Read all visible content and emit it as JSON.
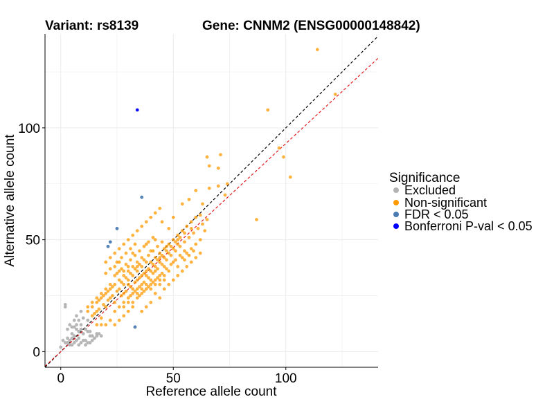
{
  "chart_data": {
    "type": "scatter",
    "title_left": "Variant: rs8139",
    "title_right": "Gene: CNNM2 (ENSG00000148842)",
    "xlabel": "Reference allele count",
    "ylabel": "Alternative allele count",
    "xlim": [
      -7,
      141
    ],
    "ylim": [
      -7,
      142
    ],
    "xticks": [
      0,
      50,
      100
    ],
    "yticks": [
      0,
      50,
      100
    ],
    "grid": true,
    "reference_lines": [
      {
        "name": "identity",
        "style": "dashed",
        "color": "#000000",
        "slope": 1.0,
        "intercept": 0
      },
      {
        "name": "fit",
        "style": "dashed",
        "color": "#e41a1c",
        "slope": 0.93,
        "intercept": 0
      }
    ],
    "legend": {
      "title": "Significance",
      "position": "right",
      "entries": [
        {
          "label": "Excluded",
          "color": "#b3b3b3"
        },
        {
          "label": "Non-significant",
          "color": "#ff9900"
        },
        {
          "label": "FDR < 0.05",
          "color": "#4a7ab0"
        },
        {
          "label": "Bonferroni P-val < 0.05",
          "color": "#0000ff"
        }
      ]
    },
    "series": [
      {
        "name": "Excluded",
        "color": "#b3b3b3",
        "points": [
          [
            0,
            2
          ],
          [
            2,
            4
          ],
          [
            3,
            6
          ],
          [
            1,
            5
          ],
          [
            4,
            3
          ],
          [
            5,
            8
          ],
          [
            6,
            4
          ],
          [
            7,
            10
          ],
          [
            8,
            6
          ],
          [
            9,
            12
          ],
          [
            10,
            8
          ],
          [
            3,
            10
          ],
          [
            2,
            20
          ],
          [
            2,
            21
          ],
          [
            6,
            14
          ],
          [
            8,
            14
          ],
          [
            10,
            15
          ],
          [
            11,
            10
          ],
          [
            12,
            9
          ],
          [
            13,
            7
          ],
          [
            14,
            7
          ],
          [
            15,
            6
          ],
          [
            16,
            8
          ],
          [
            17,
            8
          ],
          [
            18,
            7
          ],
          [
            5,
            3
          ],
          [
            7,
            5
          ],
          [
            9,
            4
          ],
          [
            11,
            5
          ],
          [
            12,
            4
          ],
          [
            13,
            4
          ],
          [
            8,
            9
          ],
          [
            9,
            10
          ],
          [
            6,
            7
          ],
          [
            4,
            5
          ],
          [
            3,
            4
          ],
          [
            5,
            11
          ],
          [
            7,
            12
          ],
          [
            4,
            12
          ],
          [
            14,
            5
          ],
          [
            16,
            7
          ],
          [
            11,
            3
          ],
          [
            6,
            11
          ],
          [
            9,
            18
          ],
          [
            7,
            16
          ],
          [
            12,
            14
          ],
          [
            10,
            5
          ],
          [
            5,
            6
          ],
          [
            13,
            9
          ],
          [
            8,
            3
          ]
        ]
      },
      {
        "name": "Non-significant",
        "color": "#ff9900",
        "points": [
          [
            114,
            135
          ],
          [
            92,
            108
          ],
          [
            122,
            115
          ],
          [
            99,
            87
          ],
          [
            102,
            78
          ],
          [
            87,
            59
          ],
          [
            97,
            91
          ],
          [
            71,
            88
          ],
          [
            65,
            87
          ],
          [
            70,
            82
          ],
          [
            66,
            83
          ],
          [
            74,
            75
          ],
          [
            73,
            70
          ],
          [
            70,
            74
          ],
          [
            66,
            73
          ],
          [
            60,
            72
          ],
          [
            63,
            66
          ],
          [
            57,
            68
          ],
          [
            54,
            66
          ],
          [
            62,
            61
          ],
          [
            58,
            55
          ],
          [
            50,
            60
          ],
          [
            52,
            50
          ],
          [
            55,
            45
          ],
          [
            48,
            55
          ],
          [
            45,
            58
          ],
          [
            47,
            47
          ],
          [
            44,
            42
          ],
          [
            42,
            50
          ],
          [
            40,
            45
          ],
          [
            38,
            48
          ],
          [
            36,
            42
          ],
          [
            34,
            40
          ],
          [
            32,
            44
          ],
          [
            30,
            38
          ],
          [
            28,
            36
          ],
          [
            26,
            40
          ],
          [
            24,
            34
          ],
          [
            22,
            30
          ],
          [
            20,
            28
          ],
          [
            18,
            26
          ],
          [
            16,
            24
          ],
          [
            14,
            22
          ],
          [
            12,
            20
          ],
          [
            14,
            16
          ],
          [
            16,
            18
          ],
          [
            18,
            15
          ],
          [
            20,
            20
          ],
          [
            22,
            24
          ],
          [
            24,
            22
          ],
          [
            26,
            28
          ],
          [
            28,
            26
          ],
          [
            30,
            30
          ],
          [
            32,
            28
          ],
          [
            34,
            32
          ],
          [
            36,
            30
          ],
          [
            38,
            34
          ],
          [
            40,
            32
          ],
          [
            42,
            36
          ],
          [
            44,
            34
          ],
          [
            46,
            38
          ],
          [
            48,
            36
          ],
          [
            50,
            40
          ],
          [
            52,
            38
          ],
          [
            54,
            42
          ],
          [
            56,
            44
          ],
          [
            58,
            46
          ],
          [
            60,
            48
          ],
          [
            62,
            50
          ],
          [
            64,
            54
          ],
          [
            46,
            28
          ],
          [
            44,
            24
          ],
          [
            42,
            26
          ],
          [
            40,
            22
          ],
          [
            38,
            20
          ],
          [
            36,
            18
          ],
          [
            34,
            24
          ],
          [
            32,
            20
          ],
          [
            30,
            18
          ],
          [
            28,
            16
          ],
          [
            26,
            14
          ],
          [
            24,
            12
          ],
          [
            22,
            14
          ],
          [
            20,
            12
          ],
          [
            18,
            12
          ],
          [
            16,
            12
          ],
          [
            30,
            50
          ],
          [
            28,
            48
          ],
          [
            26,
            46
          ],
          [
            24,
            44
          ],
          [
            22,
            42
          ],
          [
            20,
            40
          ],
          [
            32,
            52
          ],
          [
            34,
            54
          ],
          [
            36,
            56
          ],
          [
            38,
            58
          ],
          [
            40,
            60
          ],
          [
            42,
            62
          ],
          [
            44,
            64
          ],
          [
            27,
            31
          ],
          [
            29,
            33
          ],
          [
            31,
            35
          ],
          [
            33,
            37
          ],
          [
            35,
            39
          ],
          [
            37,
            41
          ],
          [
            39,
            43
          ],
          [
            41,
            45
          ],
          [
            43,
            47
          ],
          [
            45,
            49
          ],
          [
            25,
            27
          ],
          [
            23,
            25
          ],
          [
            21,
            23
          ],
          [
            19,
            21
          ],
          [
            17,
            19
          ],
          [
            15,
            17
          ],
          [
            28,
            22
          ],
          [
            30,
            24
          ],
          [
            32,
            26
          ],
          [
            34,
            28
          ],
          [
            36,
            26
          ],
          [
            38,
            28
          ],
          [
            40,
            30
          ],
          [
            42,
            30
          ],
          [
            44,
            32
          ],
          [
            46,
            34
          ],
          [
            48,
            30
          ],
          [
            50,
            32
          ],
          [
            52,
            34
          ],
          [
            54,
            36
          ],
          [
            56,
            38
          ],
          [
            58,
            40
          ],
          [
            60,
            42
          ],
          [
            62,
            44
          ],
          [
            48,
            44
          ],
          [
            50,
            46
          ],
          [
            52,
            48
          ],
          [
            46,
            42
          ],
          [
            44,
            40
          ],
          [
            42,
            38
          ],
          [
            40,
            36
          ],
          [
            38,
            36
          ],
          [
            36,
            34
          ],
          [
            34,
            36
          ],
          [
            32,
            34
          ],
          [
            30,
            32
          ],
          [
            28,
            30
          ],
          [
            26,
            32
          ],
          [
            24,
            30
          ],
          [
            22,
            28
          ],
          [
            20,
            26
          ],
          [
            18,
            24
          ],
          [
            16,
            22
          ],
          [
            14,
            20
          ],
          [
            12,
            18
          ],
          [
            31,
            29
          ],
          [
            33,
            31
          ],
          [
            35,
            33
          ],
          [
            37,
            35
          ],
          [
            39,
            37
          ],
          [
            41,
            39
          ],
          [
            43,
            41
          ],
          [
            45,
            43
          ],
          [
            47,
            45
          ],
          [
            49,
            47
          ],
          [
            51,
            49
          ],
          [
            53,
            51
          ],
          [
            55,
            53
          ],
          [
            57,
            51
          ],
          [
            59,
            53
          ],
          [
            61,
            55
          ],
          [
            63,
            57
          ],
          [
            65,
            59
          ],
          [
            25,
            35
          ],
          [
            27,
            37
          ],
          [
            29,
            39
          ],
          [
            31,
            41
          ],
          [
            33,
            43
          ],
          [
            35,
            45
          ],
          [
            37,
            47
          ],
          [
            39,
            49
          ],
          [
            41,
            51
          ],
          [
            23,
            29
          ],
          [
            21,
            27
          ],
          [
            19,
            25
          ],
          [
            17,
            23
          ],
          [
            27,
            25
          ],
          [
            29,
            27
          ],
          [
            31,
            25
          ],
          [
            33,
            27
          ],
          [
            35,
            29
          ],
          [
            37,
            31
          ],
          [
            39,
            33
          ],
          [
            41,
            35
          ],
          [
            43,
            37
          ],
          [
            45,
            39
          ],
          [
            47,
            41
          ],
          [
            49,
            43
          ],
          [
            51,
            45
          ],
          [
            53,
            47
          ],
          [
            55,
            49
          ],
          [
            24,
            18
          ],
          [
            26,
            20
          ],
          [
            28,
            20
          ],
          [
            30,
            22
          ],
          [
            32,
            22
          ],
          [
            34,
            26
          ],
          [
            36,
            28
          ],
          [
            38,
            30
          ],
          [
            40,
            28
          ],
          [
            42,
            32
          ],
          [
            44,
            30
          ],
          [
            46,
            32
          ],
          [
            25,
            40
          ],
          [
            27,
            42
          ],
          [
            29,
            44
          ],
          [
            31,
            46
          ],
          [
            33,
            48
          ],
          [
            20,
            35
          ],
          [
            22,
            37
          ],
          [
            24,
            38
          ],
          [
            26,
            36
          ],
          [
            28,
            34
          ],
          [
            30,
            36
          ],
          [
            32,
            38
          ],
          [
            34,
            38
          ],
          [
            36,
            38
          ],
          [
            38,
            40
          ],
          [
            40,
            40
          ],
          [
            42,
            42
          ],
          [
            44,
            44
          ],
          [
            46,
            46
          ],
          [
            48,
            48
          ],
          [
            50,
            50
          ],
          [
            52,
            52
          ],
          [
            54,
            54
          ],
          [
            56,
            56
          ],
          [
            58,
            58
          ],
          [
            60,
            60
          ],
          [
            35,
            25
          ],
          [
            37,
            27
          ],
          [
            39,
            29
          ],
          [
            41,
            31
          ],
          [
            43,
            33
          ],
          [
            45,
            35
          ],
          [
            47,
            37
          ],
          [
            49,
            39
          ],
          [
            51,
            41
          ],
          [
            53,
            43
          ],
          [
            55,
            41
          ],
          [
            57,
            43
          ],
          [
            59,
            45
          ]
        ]
      },
      {
        "name": "FDR < 0.05",
        "color": "#4a7ab0",
        "points": [
          [
            36,
            69
          ],
          [
            25,
            55
          ],
          [
            21,
            47
          ],
          [
            22,
            49
          ],
          [
            33,
            11
          ]
        ]
      },
      {
        "name": "Bonferroni P-val < 0.05",
        "color": "#0000ff",
        "points": [
          [
            34,
            108
          ]
        ]
      }
    ]
  }
}
